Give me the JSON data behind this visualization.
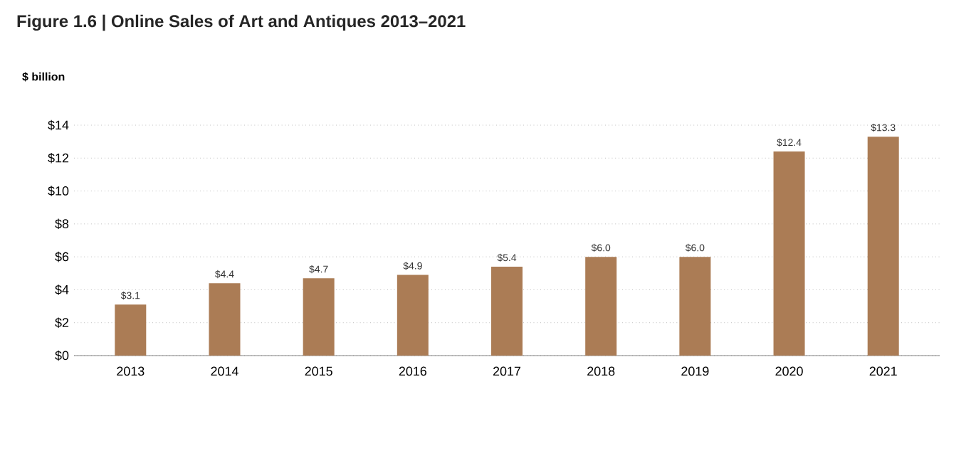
{
  "chart_data": {
    "type": "bar",
    "title": "Figure 1.6 | Online Sales of Art and Antiques 2013–2021",
    "ylabel": "$ billion",
    "categories": [
      "2013",
      "2014",
      "2015",
      "2016",
      "2017",
      "2018",
      "2019",
      "2020",
      "2021"
    ],
    "values": [
      3.1,
      4.4,
      4.7,
      4.9,
      5.4,
      6.0,
      6.0,
      12.4,
      13.3
    ],
    "value_labels": [
      "$3.1",
      "$4.4",
      "$4.7",
      "$4.9",
      "$5.4",
      "$6.0",
      "$6.0",
      "$12.4",
      "$13.3"
    ],
    "color": "#ab7c55",
    "ylim": [
      0,
      14
    ],
    "yticks": [
      {
        "value": 0,
        "label": "$0"
      },
      {
        "value": 2,
        "label": "$2"
      },
      {
        "value": 4,
        "label": "$4"
      },
      {
        "value": 6,
        "label": "$6"
      },
      {
        "value": 8,
        "label": "$8"
      },
      {
        "value": 10,
        "label": "$10"
      },
      {
        "value": 12,
        "label": "$12"
      },
      {
        "value": 14,
        "label": "$14"
      }
    ],
    "grid": "y"
  }
}
